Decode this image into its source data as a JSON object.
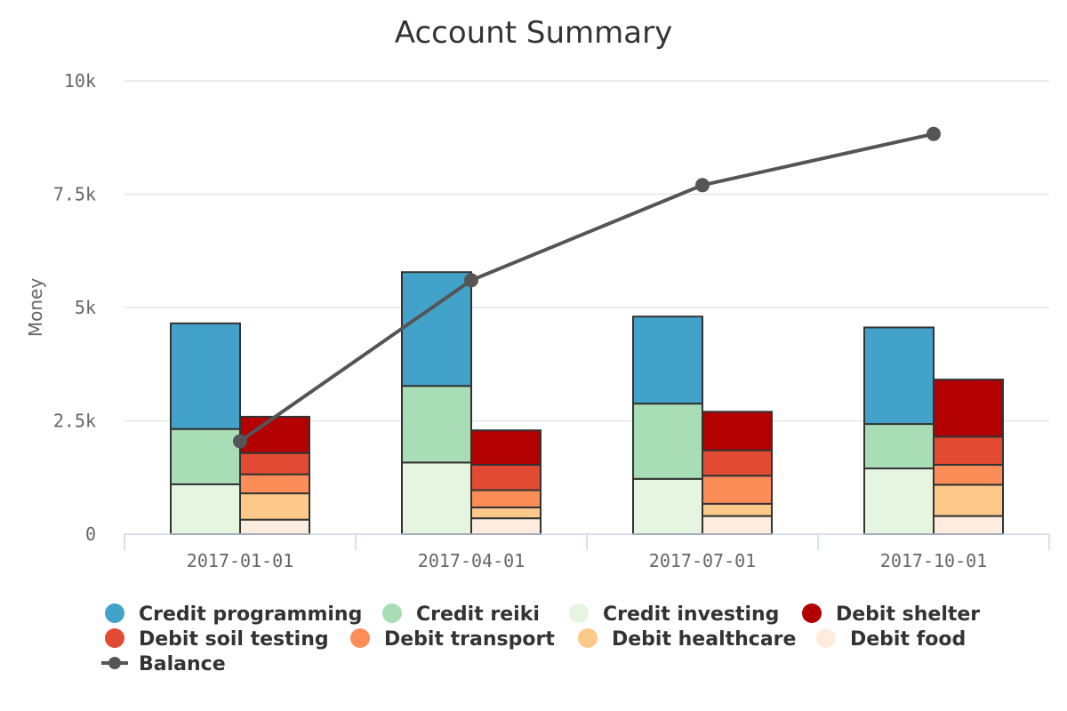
{
  "chart_data": {
    "type": "bar",
    "title": "Account Summary",
    "xlabel": "",
    "ylabel": "Money",
    "ylim": [
      0,
      10000
    ],
    "yticks": [
      0,
      2500,
      5000,
      7500,
      10000
    ],
    "ytick_labels": [
      "0",
      "2.5k",
      "5k",
      "7.5k",
      "10k"
    ],
    "categories": [
      "2017-01-01",
      "2017-04-01",
      "2017-07-01",
      "2017-10-01"
    ],
    "stacks": [
      {
        "stack": "credit",
        "series": [
          {
            "name": "Credit investing",
            "color": "#e5f5e0",
            "values": [
              1100,
              1580,
              1220,
              1450
            ]
          },
          {
            "name": "Credit reiki",
            "color": "#a8ddb5",
            "values": [
              1220,
              1690,
              1660,
              980
            ]
          },
          {
            "name": "Credit programming",
            "color": "#43a2ca",
            "values": [
              2330,
              2510,
              1920,
              2130
            ]
          }
        ]
      },
      {
        "stack": "debit",
        "series": [
          {
            "name": "Debit food",
            "color": "#feedde",
            "values": [
              320,
              350,
              400,
              400
            ]
          },
          {
            "name": "Debit healthcare",
            "color": "#fdc98a",
            "values": [
              580,
              240,
              270,
              690
            ]
          },
          {
            "name": "Debit transport",
            "color": "#fc8d59",
            "values": [
              420,
              380,
              620,
              440
            ]
          },
          {
            "name": "Debit soil testing",
            "color": "#e34a33",
            "values": [
              470,
              560,
              560,
              620
            ]
          },
          {
            "name": "Debit shelter",
            "color": "#b30000",
            "values": [
              800,
              760,
              850,
              1260
            ]
          }
        ]
      }
    ],
    "line_series": {
      "name": "Balance",
      "color": "#555555",
      "values": [
        2050,
        5600,
        7700,
        8830
      ]
    },
    "grid": true,
    "legend": {
      "placement": "bottom",
      "items": [
        {
          "name": "Credit programming",
          "color": "#43a2ca",
          "marker": "circle"
        },
        {
          "name": "Credit reiki",
          "color": "#a8ddb5",
          "marker": "circle"
        },
        {
          "name": "Credit investing",
          "color": "#e5f5e0",
          "marker": "circle"
        },
        {
          "name": "Debit shelter",
          "color": "#b30000",
          "marker": "circle"
        },
        {
          "name": "Debit soil testing",
          "color": "#e34a33",
          "marker": "circle"
        },
        {
          "name": "Debit transport",
          "color": "#fc8d59",
          "marker": "circle"
        },
        {
          "name": "Debit healthcare",
          "color": "#fdc98a",
          "marker": "circle"
        },
        {
          "name": "Debit food",
          "color": "#feedde",
          "marker": "circle"
        },
        {
          "name": "Balance",
          "color": "#555555",
          "marker": "line"
        }
      ]
    }
  }
}
